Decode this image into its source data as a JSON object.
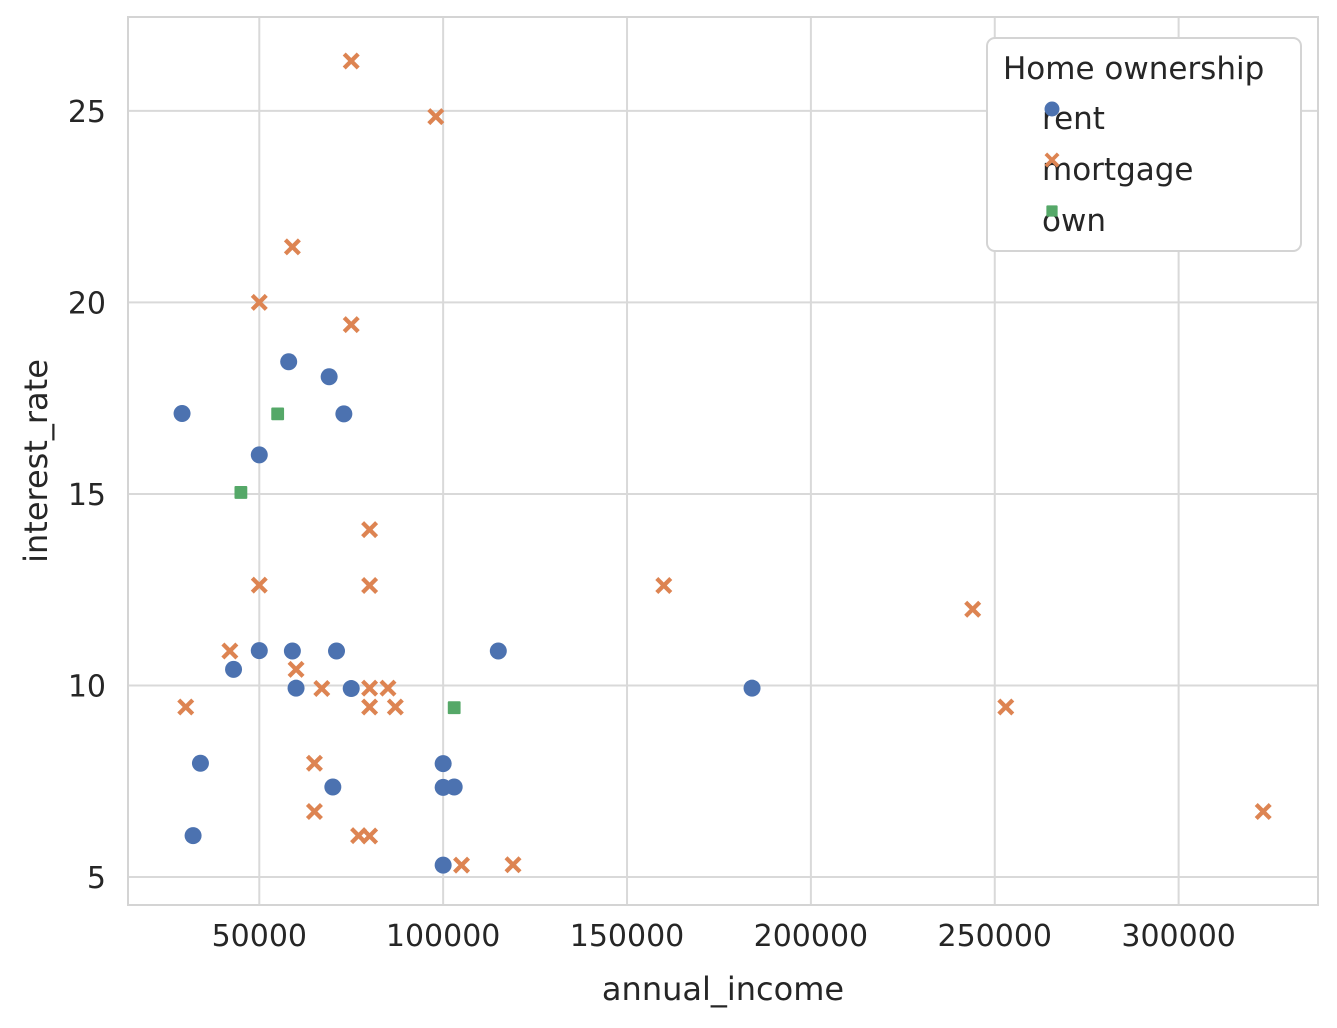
{
  "figure": {
    "background": "#ffffff",
    "text_color": "#262626",
    "grid_color": "#d9d9d9",
    "spine_color": "#d4d4d4"
  },
  "chart_data": {
    "type": "scatter",
    "title": "",
    "xlabel": "annual_income",
    "ylabel": "interest_rate",
    "xlim": [
      14300,
      337900
    ],
    "ylim": [
      4.27,
      27.45
    ],
    "x_ticks": [
      50000,
      100000,
      150000,
      200000,
      250000,
      300000
    ],
    "y_ticks": [
      5,
      10,
      15,
      20,
      25
    ],
    "grid": true,
    "legend": {
      "title": "Home ownership",
      "position": "upper right"
    },
    "series": [
      {
        "name": "rent",
        "marker": "circle",
        "color": "#4C72B0",
        "points": [
          [
            58000,
            18.45
          ],
          [
            69000,
            18.06
          ],
          [
            29000,
            17.1
          ],
          [
            73000,
            17.09
          ],
          [
            50000,
            16.02
          ],
          [
            50000,
            10.91
          ],
          [
            59000,
            10.9
          ],
          [
            71000,
            10.9
          ],
          [
            115000,
            10.9
          ],
          [
            43000,
            10.42
          ],
          [
            60000,
            9.93
          ],
          [
            75000,
            9.92
          ],
          [
            184000,
            9.93
          ],
          [
            34000,
            7.97
          ],
          [
            100000,
            7.96
          ],
          [
            70000,
            7.35
          ],
          [
            100000,
            7.34
          ],
          [
            103000,
            7.35
          ],
          [
            32000,
            6.08
          ],
          [
            100000,
            5.31
          ]
        ]
      },
      {
        "name": "mortgage",
        "marker": "x",
        "color": "#DD8452",
        "points": [
          [
            75000,
            26.3
          ],
          [
            98000,
            24.85
          ],
          [
            59000,
            21.45
          ],
          [
            50000,
            20.0
          ],
          [
            75000,
            19.42
          ],
          [
            80000,
            14.07
          ],
          [
            50000,
            12.62
          ],
          [
            80000,
            12.61
          ],
          [
            160000,
            12.61
          ],
          [
            244000,
            11.99
          ],
          [
            42000,
            10.9
          ],
          [
            60000,
            10.42
          ],
          [
            67000,
            9.92
          ],
          [
            80000,
            9.93
          ],
          [
            85000,
            9.93
          ],
          [
            30000,
            9.44
          ],
          [
            80000,
            9.44
          ],
          [
            87000,
            9.44
          ],
          [
            253000,
            9.44
          ],
          [
            65000,
            7.97
          ],
          [
            65000,
            6.71
          ],
          [
            323000,
            6.71
          ],
          [
            77000,
            6.08
          ],
          [
            80000,
            6.07
          ],
          [
            105000,
            5.31
          ],
          [
            119000,
            5.32
          ]
        ]
      },
      {
        "name": "own",
        "marker": "square",
        "color": "#55A868",
        "points": [
          [
            55000,
            17.09
          ],
          [
            45000,
            15.04
          ],
          [
            103000,
            9.42
          ]
        ]
      }
    ]
  }
}
